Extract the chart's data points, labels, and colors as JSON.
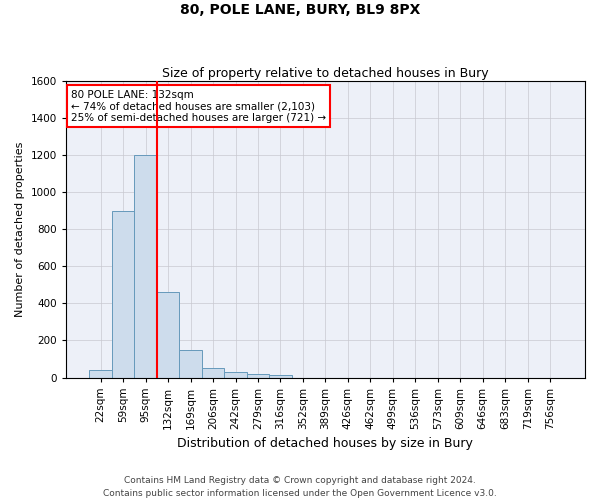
{
  "title": "80, POLE LANE, BURY, BL9 8PX",
  "subtitle": "Size of property relative to detached houses in Bury",
  "xlabel": "Distribution of detached houses by size in Bury",
  "ylabel": "Number of detached properties",
  "footnote": "Contains HM Land Registry data © Crown copyright and database right 2024.\nContains public sector information licensed under the Open Government Licence v3.0.",
  "bar_labels": [
    "22sqm",
    "59sqm",
    "95sqm",
    "132sqm",
    "169sqm",
    "206sqm",
    "242sqm",
    "279sqm",
    "316sqm",
    "352sqm",
    "389sqm",
    "426sqm",
    "462sqm",
    "499sqm",
    "536sqm",
    "573sqm",
    "609sqm",
    "646sqm",
    "683sqm",
    "719sqm",
    "756sqm"
  ],
  "bar_values": [
    40,
    900,
    1200,
    460,
    150,
    50,
    28,
    18,
    12,
    0,
    0,
    0,
    0,
    0,
    0,
    0,
    0,
    0,
    0,
    0,
    0
  ],
  "bar_color": "#cddcec",
  "bar_edge_color": "#6699bb",
  "highlight_line_color": "red",
  "highlight_bar_index": 3,
  "annotation_text": "80 POLE LANE: 132sqm\n← 74% of detached houses are smaller (2,103)\n25% of semi-detached houses are larger (721) →",
  "annotation_box_color": "white",
  "annotation_box_edge": "red",
  "ylim": [
    0,
    1600
  ],
  "yticks": [
    0,
    200,
    400,
    600,
    800,
    1000,
    1200,
    1400,
    1600
  ],
  "grid_color": "#c8c8d0",
  "background_color": "#edf0f8",
  "fig_background": "#ffffff",
  "title_fontsize": 10,
  "subtitle_fontsize": 9,
  "ylabel_fontsize": 8,
  "xlabel_fontsize": 9,
  "footnote_fontsize": 6.5,
  "tick_fontsize": 7.5
}
